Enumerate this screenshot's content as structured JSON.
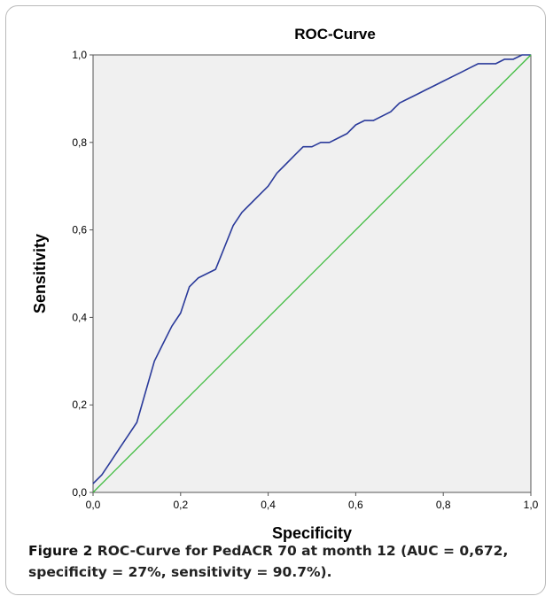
{
  "chart_data": {
    "type": "line",
    "title": "ROC-Curve",
    "xlabel": "Specificity",
    "ylabel": "Sensitivity",
    "xlim": [
      0.0,
      1.0
    ],
    "ylim": [
      0.0,
      1.0
    ],
    "x_ticks": [
      "0,0",
      "0,2",
      "0,4",
      "0,6",
      "0,8",
      "1,0"
    ],
    "y_ticks": [
      "0,0",
      "0,2",
      "0,4",
      "0,6",
      "0,8",
      "1,0"
    ],
    "grid": false,
    "background": "#f0f0f0",
    "series": [
      {
        "color": "#2a3a9a",
        "x": [
          0.0,
          0.02,
          0.04,
          0.06,
          0.08,
          0.1,
          0.12,
          0.14,
          0.16,
          0.18,
          0.2,
          0.22,
          0.24,
          0.26,
          0.28,
          0.3,
          0.32,
          0.34,
          0.36,
          0.38,
          0.4,
          0.42,
          0.44,
          0.46,
          0.48,
          0.5,
          0.52,
          0.54,
          0.56,
          0.58,
          0.6,
          0.62,
          0.64,
          0.66,
          0.68,
          0.7,
          0.72,
          0.74,
          0.76,
          0.78,
          0.8,
          0.82,
          0.84,
          0.86,
          0.88,
          0.9,
          0.92,
          0.94,
          0.96,
          0.98,
          1.0
        ],
        "y": [
          0.02,
          0.04,
          0.07,
          0.1,
          0.13,
          0.16,
          0.23,
          0.3,
          0.34,
          0.38,
          0.41,
          0.47,
          0.49,
          0.5,
          0.51,
          0.56,
          0.61,
          0.64,
          0.66,
          0.68,
          0.7,
          0.73,
          0.75,
          0.77,
          0.79,
          0.79,
          0.8,
          0.8,
          0.81,
          0.82,
          0.84,
          0.85,
          0.85,
          0.86,
          0.87,
          0.89,
          0.9,
          0.91,
          0.92,
          0.93,
          0.94,
          0.95,
          0.96,
          0.97,
          0.98,
          0.98,
          0.98,
          0.99,
          0.99,
          1.0,
          1.0
        ]
      },
      {
        "color": "#3dbb3d",
        "x": [
          0.0,
          1.0
        ],
        "y": [
          0.0,
          1.0
        ]
      }
    ]
  },
  "caption": {
    "lead": "Figure 2",
    "text": " ROC-Curve for PedACR 70 at month 12 (AUC = 0,672, specificity = 27%, sensitivity = 90.7%)."
  }
}
